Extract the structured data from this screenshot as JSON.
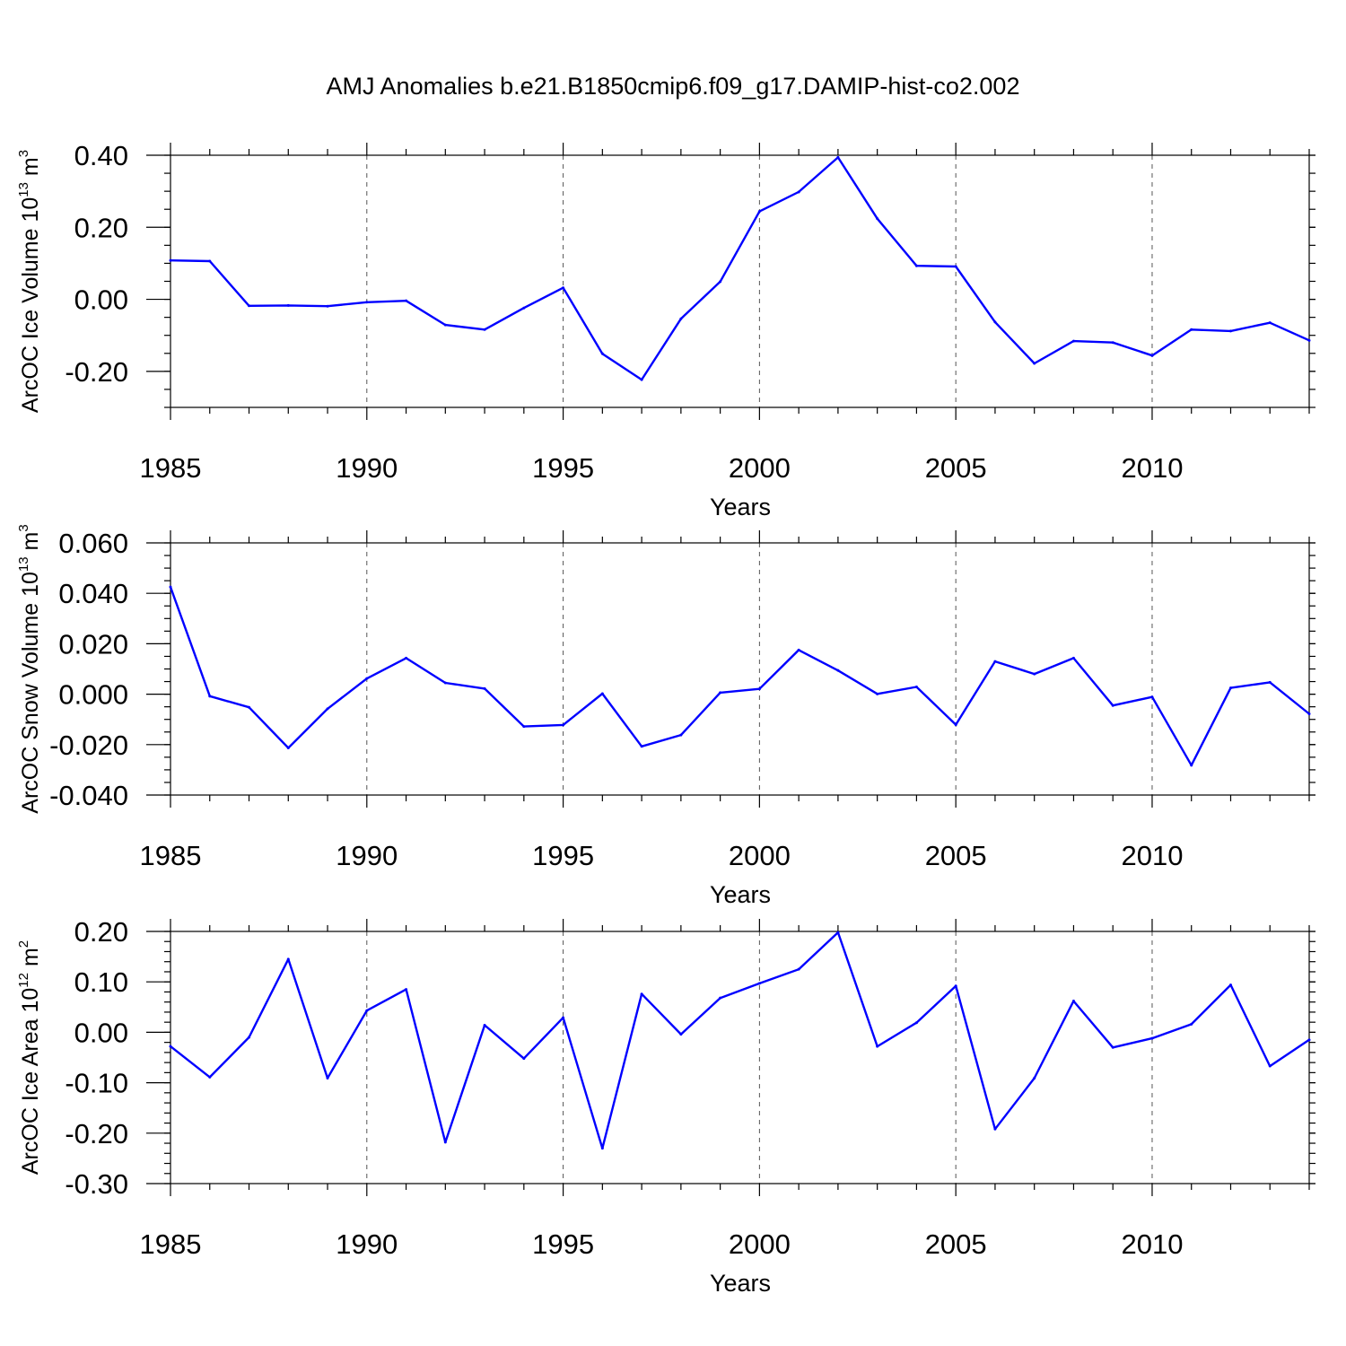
{
  "figure_title": "AMJ Anomalies b.e21.B1850cmip6.f09_g17.DAMIP-hist-co2.002",
  "series_color": "#0000ff",
  "chart_data": [
    {
      "type": "line",
      "id": "ice-volume",
      "ylabel": "ArcOC Ice Volume 10",
      "ylabel_exp": "13",
      "ylabel_unit": " m",
      "ylabel_unit_exp": "3",
      "xlabel": "Years",
      "xlim": [
        1985,
        2014
      ],
      "ylim": [
        -0.3,
        0.4
      ],
      "yticks": [
        -0.2,
        0.0,
        0.2,
        0.4
      ],
      "ytick_labels": [
        "-0.20",
        "0.00",
        "0.20",
        "0.40"
      ],
      "yminor_step": 0.05,
      "xticks": [
        1985,
        1990,
        1995,
        2000,
        2005,
        2010
      ],
      "xtick_labels": [
        "1985",
        "1990",
        "1995",
        "2000",
        "2005",
        "2010"
      ],
      "grid_years": [
        1990,
        1995,
        2000,
        2005,
        2010
      ],
      "x": [
        1985,
        1986,
        1987,
        1988,
        1989,
        1990,
        1991,
        1992,
        1993,
        1994,
        1995,
        1996,
        1997,
        1998,
        1999,
        2000,
        2001,
        2002,
        2003,
        2004,
        2005,
        2006,
        2007,
        2008,
        2009,
        2010,
        2011,
        2012,
        2013,
        2014
      ],
      "values": [
        0.108,
        0.106,
        -0.018,
        -0.017,
        -0.019,
        -0.008,
        -0.004,
        -0.071,
        -0.084,
        -0.024,
        0.032,
        -0.151,
        -0.223,
        -0.054,
        0.049,
        0.244,
        0.298,
        0.394,
        0.224,
        0.093,
        0.091,
        -0.063,
        -0.178,
        -0.116,
        -0.12,
        -0.156,
        -0.084,
        -0.088,
        -0.065,
        -0.114
      ]
    },
    {
      "type": "line",
      "id": "snow-volume",
      "ylabel": "ArcOC Snow Volume 10",
      "ylabel_exp": "13",
      "ylabel_unit": " m",
      "ylabel_unit_exp": "3",
      "xlabel": "Years",
      "xlim": [
        1985,
        2014
      ],
      "ylim": [
        -0.04,
        0.06
      ],
      "yticks": [
        -0.04,
        -0.02,
        0.0,
        0.02,
        0.04,
        0.06
      ],
      "ytick_labels": [
        "-0.040",
        "-0.020",
        "0.000",
        "0.020",
        "0.040",
        "0.060"
      ],
      "yminor_step": 0.005,
      "xticks": [
        1985,
        1990,
        1995,
        2000,
        2005,
        2010
      ],
      "xtick_labels": [
        "1985",
        "1990",
        "1995",
        "2000",
        "2005",
        "2010"
      ],
      "grid_years": [
        1990,
        1995,
        2000,
        2005,
        2010
      ],
      "x": [
        1985,
        1986,
        1987,
        1988,
        1989,
        1990,
        1991,
        1992,
        1993,
        1994,
        1995,
        1996,
        1997,
        1998,
        1999,
        2000,
        2001,
        2002,
        2003,
        2004,
        2005,
        2006,
        2007,
        2008,
        2009,
        2010,
        2011,
        2012,
        2013,
        2014
      ],
      "values": [
        0.0425,
        -0.0008,
        -0.0052,
        -0.0213,
        -0.0058,
        0.0062,
        0.0143,
        0.0045,
        0.0022,
        -0.0128,
        -0.0122,
        0.0002,
        -0.0207,
        -0.0162,
        0.0006,
        0.0021,
        0.0175,
        0.0094,
        0.0001,
        0.0029,
        -0.0121,
        0.013,
        0.008,
        0.0143,
        -0.0045,
        -0.0011,
        -0.0282,
        0.0025,
        0.0047,
        -0.0078
      ]
    },
    {
      "type": "line",
      "id": "ice-area",
      "ylabel": "ArcOC Ice Area 10",
      "ylabel_exp": "12",
      "ylabel_unit": " m",
      "ylabel_unit_exp": "2",
      "xlabel": "Years",
      "xlim": [
        1985,
        2014
      ],
      "ylim": [
        -0.3,
        0.2
      ],
      "yticks": [
        -0.3,
        -0.2,
        -0.1,
        0.0,
        0.1,
        0.2
      ],
      "ytick_labels": [
        "-0.30",
        "-0.20",
        "-0.10",
        "0.00",
        "0.10",
        "0.20"
      ],
      "yminor_step": 0.02,
      "xticks": [
        1985,
        1990,
        1995,
        2000,
        2005,
        2010
      ],
      "xtick_labels": [
        "1985",
        "1990",
        "1995",
        "2000",
        "2005",
        "2010"
      ],
      "grid_years": [
        1990,
        1995,
        2000,
        2005,
        2010
      ],
      "x": [
        1985,
        1986,
        1987,
        1988,
        1989,
        1990,
        1991,
        1992,
        1993,
        1994,
        1995,
        1996,
        1997,
        1998,
        1999,
        2000,
        2001,
        2002,
        2003,
        2004,
        2005,
        2006,
        2007,
        2008,
        2009,
        2010,
        2011,
        2012,
        2013,
        2014
      ],
      "values": [
        -0.028,
        -0.089,
        -0.01,
        0.145,
        -0.091,
        0.043,
        0.085,
        -0.218,
        0.014,
        -0.052,
        0.029,
        -0.23,
        0.076,
        -0.004,
        0.068,
        0.097,
        0.125,
        0.198,
        -0.028,
        0.019,
        0.092,
        -0.192,
        -0.091,
        0.062,
        -0.03,
        -0.012,
        0.016,
        0.094,
        -0.067,
        -0.015
      ]
    }
  ]
}
